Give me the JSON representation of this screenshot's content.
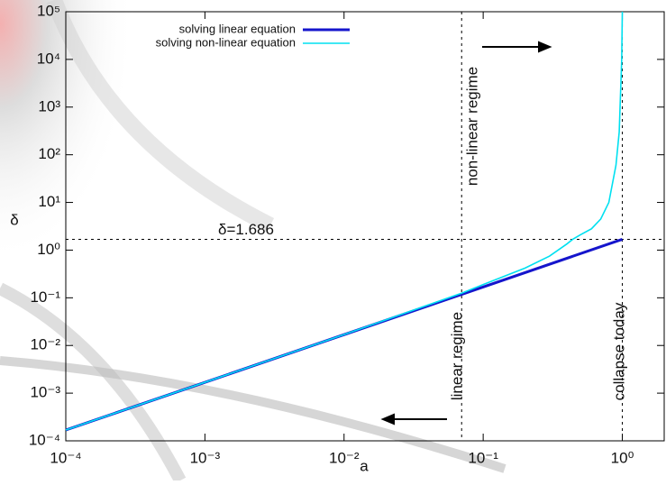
{
  "chart_data": {
    "type": "line",
    "xlabel": "a",
    "ylabel": "δ",
    "xscale": "log",
    "yscale": "log",
    "xlim": [
      0.0001,
      2
    ],
    "ylim": [
      0.0001,
      100000
    ],
    "xticks": [
      {
        "value": 0.0001,
        "label": "10⁻⁴"
      },
      {
        "value": 0.001,
        "label": "10⁻³"
      },
      {
        "value": 0.01,
        "label": "10⁻²"
      },
      {
        "value": 0.1,
        "label": "10⁻¹"
      },
      {
        "value": 1,
        "label": "10⁰"
      }
    ],
    "yticks": [
      {
        "value": 0.0001,
        "label": "10⁻⁴"
      },
      {
        "value": 0.001,
        "label": "10⁻³"
      },
      {
        "value": 0.01,
        "label": "10⁻²"
      },
      {
        "value": 0.1,
        "label": "10⁻¹"
      },
      {
        "value": 1,
        "label": "10⁰"
      },
      {
        "value": 10,
        "label": "10¹"
      },
      {
        "value": 100,
        "label": "10²"
      },
      {
        "value": 1000,
        "label": "10³"
      },
      {
        "value": 10000,
        "label": "10⁴"
      },
      {
        "value": 100000,
        "label": "10⁵"
      }
    ],
    "legend": "upper left",
    "series": [
      {
        "name": "solving linear equation",
        "color": "#1515cc",
        "x": [
          0.0001,
          1
        ],
        "values": [
          0.0001686,
          1.686
        ]
      },
      {
        "name": "solving non-linear equation",
        "color": "#00e0f0",
        "x": [
          0.0001,
          0.01,
          0.07,
          0.1,
          0.2,
          0.3,
          0.4,
          0.44,
          0.5,
          0.6,
          0.7,
          0.8,
          0.9,
          0.95,
          0.99,
          1
        ],
        "values": [
          0.0001686,
          0.0169,
          0.125,
          0.19,
          0.42,
          0.75,
          1.35,
          1.686,
          2.1,
          2.8,
          4.5,
          10,
          60,
          300,
          10000,
          100000
        ]
      }
    ],
    "vlines": [
      0.07,
      1
    ],
    "hline": 1.686,
    "annotations": [
      "δ=1.686",
      "non-linear regime",
      "linear regime",
      "collapse today"
    ]
  }
}
